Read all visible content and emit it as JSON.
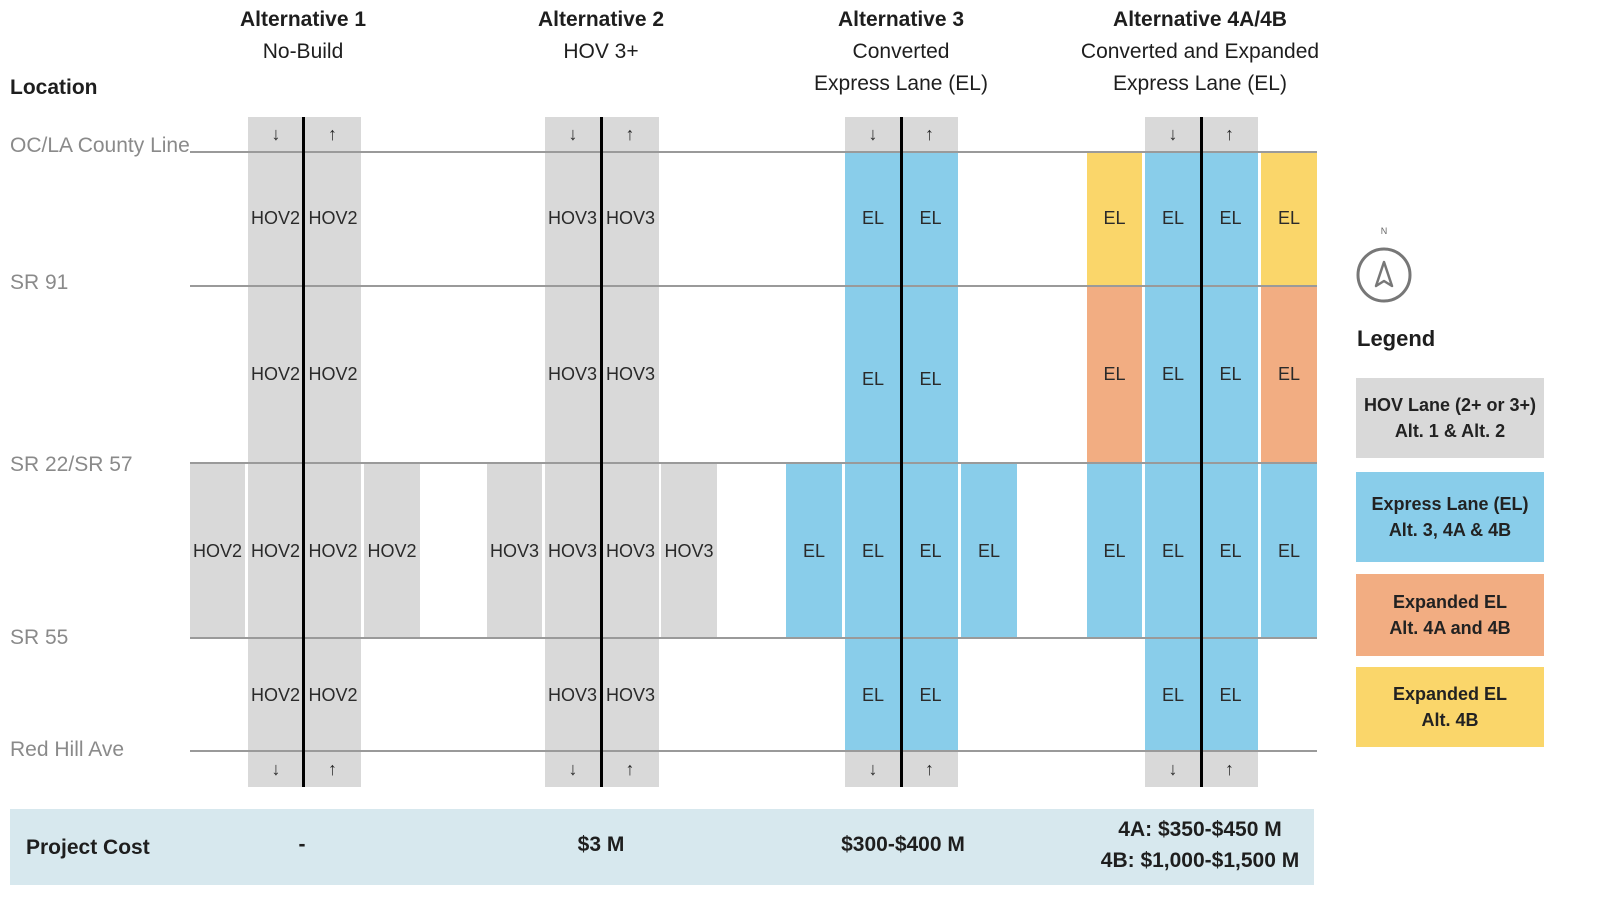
{
  "headers": {
    "location": "Location",
    "alternatives": [
      {
        "title": "Alternative 1",
        "lines": [
          "No-Build"
        ]
      },
      {
        "title": "Alternative 2",
        "lines": [
          "HOV 3+"
        ]
      },
      {
        "title": "Alternative 3",
        "lines": [
          "Converted",
          "Express Lane (EL)"
        ]
      },
      {
        "title": "Alternative 4A/4B",
        "lines": [
          "Converted and Expanded",
          "Express Lane (EL)"
        ]
      }
    ]
  },
  "locations": [
    "OC/LA County Line",
    "SR 91",
    "SR 22/SR 57",
    "SR 55",
    "Red Hill Ave"
  ],
  "lane_labels": {
    "hov2": "HOV2",
    "hov3": "HOV3",
    "el": "EL"
  },
  "arrows": {
    "down": "↓",
    "up": "↑"
  },
  "compass_label": "N",
  "legend": {
    "title": "Legend",
    "items": [
      {
        "line1": "HOV Lane (2+ or 3+)",
        "line2": "Alt. 1 & Alt. 2",
        "color": "#d9d9d9"
      },
      {
        "line1": "Express Lane (EL)",
        "line2": "Alt. 3, 4A & 4B",
        "color": "#89cdea"
      },
      {
        "line1": "Expanded EL",
        "line2": "Alt. 4A and 4B",
        "color": "#f2ad82"
      },
      {
        "line1": "Expanded EL",
        "line2": "Alt. 4B",
        "color": "#fad66a"
      }
    ]
  },
  "cost": {
    "label": "Project Cost",
    "alt1": "-",
    "alt2": "$3 M",
    "alt3": "$300-$400 M",
    "alt4_line1": "4A: $350-$450 M",
    "alt4_line2": "4B: $1,000-$1,500 M"
  }
}
